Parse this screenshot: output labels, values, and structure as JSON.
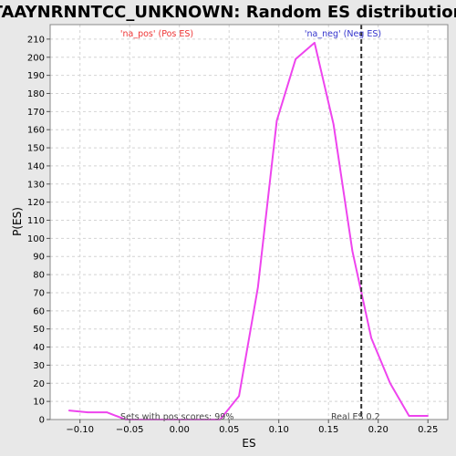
{
  "chart_data": {
    "type": "line",
    "title": "TAAYNRNNTCC_UNKNOWN: Random ES distribution",
    "xlabel": "ES",
    "ylabel": "P(ES)",
    "xlim": [
      -0.13,
      0.27
    ],
    "ylim": [
      0,
      218
    ],
    "x_ticks": [
      -0.1,
      -0.05,
      0.0,
      0.05,
      0.1,
      0.15,
      0.2,
      0.25
    ],
    "x_tick_labels": [
      "−0.10",
      "−0.05",
      "0.00",
      "0.05",
      "0.10",
      "0.15",
      "0.20",
      "0.25"
    ],
    "y_ticks": [
      0,
      10,
      20,
      30,
      40,
      50,
      60,
      70,
      80,
      90,
      100,
      110,
      120,
      130,
      140,
      150,
      160,
      170,
      180,
      190,
      200,
      210
    ],
    "y_tick_labels": [
      "0",
      "10",
      "20",
      "30",
      "40",
      "50",
      "60",
      "70",
      "80",
      "90",
      "100",
      "110",
      "120",
      "130",
      "140",
      "150",
      "160",
      "170",
      "180",
      "190",
      "200",
      "210"
    ],
    "grid": true,
    "series": [
      {
        "color": "#ee44ee",
        "x": [
          -0.111,
          -0.092,
          -0.073,
          -0.054,
          -0.035,
          -0.016,
          0.003,
          0.022,
          0.041,
          0.06,
          0.079,
          0.098,
          0.117,
          0.136,
          0.155,
          0.174,
          0.193,
          0.212,
          0.231,
          0.25
        ],
        "y": [
          5,
          4,
          4,
          0,
          0,
          0,
          0,
          0,
          0,
          13,
          73,
          165,
          199,
          208,
          163,
          93,
          45,
          20,
          2,
          2
        ]
      }
    ],
    "real_es": 0.183,
    "annotations": {
      "pos_label": "'na_pos' (Pos ES)",
      "neg_label": "'na_neg' (Neg ES)",
      "sets_text": "Sets with pos scores: 99%",
      "real_es_label": "Real ES 0.2"
    },
    "colors": {
      "curve": "#ee44ee",
      "pos_label": "#ee3333",
      "neg_label": "#3333cc",
      "annot_text": "#444444",
      "grid": "#d4d4d4",
      "plot_bg": "#ffffff",
      "page_bg": "#e8e8e8"
    }
  }
}
